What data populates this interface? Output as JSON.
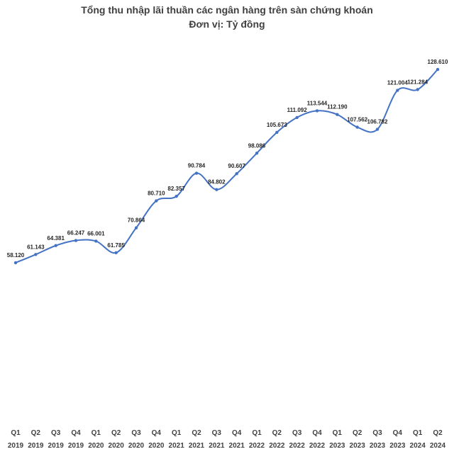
{
  "chart_data": {
    "type": "line",
    "title": "Tổng thu nhập lãi thuần các ngân hàng trên sàn chứng khoán",
    "subtitle": "Đơn vị: Tỷ đồng",
    "categories": [
      [
        "Q1",
        "2019"
      ],
      [
        "Q2",
        "2019"
      ],
      [
        "Q3",
        "2019"
      ],
      [
        "Q4",
        "2019"
      ],
      [
        "Q1",
        "2020"
      ],
      [
        "Q2",
        "2020"
      ],
      [
        "Q3",
        "2020"
      ],
      [
        "Q4",
        "2020"
      ],
      [
        "Q1",
        "2021"
      ],
      [
        "Q2",
        "2021"
      ],
      [
        "Q3",
        "2021"
      ],
      [
        "Q4",
        "2021"
      ],
      [
        "Q1",
        "2022"
      ],
      [
        "Q2",
        "2022"
      ],
      [
        "Q3",
        "2022"
      ],
      [
        "Q4",
        "2022"
      ],
      [
        "Q1",
        "2023"
      ],
      [
        "Q2",
        "2023"
      ],
      [
        "Q3",
        "2023"
      ],
      [
        "Q4",
        "2023"
      ],
      [
        "Q1",
        "2024"
      ],
      [
        "Q2",
        "2024"
      ]
    ],
    "values": [
      58120,
      61143,
      64381,
      66247,
      66001,
      61785,
      70864,
      80710,
      82357,
      90784,
      84802,
      90607,
      98086,
      105673,
      111092,
      113544,
      112190,
      107562,
      106782,
      121004,
      121284,
      128610
    ],
    "value_labels": [
      "58.120",
      "61.143",
      "64.381",
      "66.247",
      "66.001",
      "61.785",
      "70.864",
      "80.710",
      "82.357",
      "90.784",
      "84.802",
      "90.607",
      "98.086",
      "105.673",
      "111.092",
      "113.544",
      "112.190",
      "107.562",
      "106.782",
      "121.004",
      "121.284",
      "128.610"
    ],
    "ylim": [
      0,
      140000
    ],
    "grid": false,
    "line_color": "#4472C4"
  }
}
